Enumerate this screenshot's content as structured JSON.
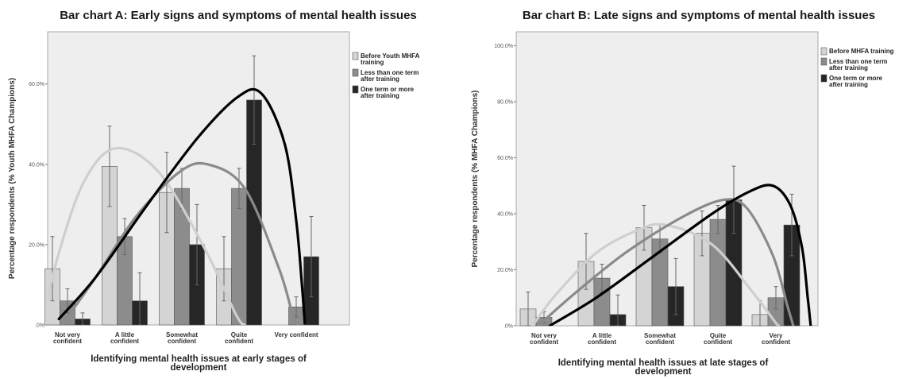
{
  "colors": {
    "series": [
      "#d4d4d4",
      "#8c8c8c",
      "#262626"
    ],
    "plot_bg": "#eeeeee",
    "curve_light": "#cfcfcf",
    "curve_mid": "#8a8a8a",
    "curve_dark": "#000000"
  },
  "chart_data": [
    {
      "type": "bar",
      "title": "Bar chart A: Early signs and symptoms of mental health issues",
      "xlabel_lines": [
        "Identifying mental health issues at early stages of",
        "development"
      ],
      "ylabel": "Percentage respondents (% Youth MHFA Champions)",
      "ylim": [
        0,
        73
      ],
      "yticks": [
        0,
        20,
        40,
        60
      ],
      "ytick_labels": [
        ".0%",
        "20.0%",
        "40.0%",
        "60.0%"
      ],
      "categories": [
        [
          "Not very",
          "confident"
        ],
        [
          "A little",
          "confident"
        ],
        [
          "Somewhat",
          "confident"
        ],
        [
          "Quite",
          "confident"
        ],
        [
          "Very confident"
        ]
      ],
      "series": [
        {
          "name_lines": [
            "Before Youth MHFA",
            "training"
          ],
          "values": [
            14,
            39.5,
            33,
            14,
            0
          ],
          "err": [
            8,
            10,
            10,
            8,
            0
          ]
        },
        {
          "name_lines": [
            "Less than one term",
            "after training"
          ],
          "values": [
            6,
            22,
            34,
            34,
            4.5
          ],
          "err": [
            3,
            4.5,
            5,
            5,
            2.5
          ]
        },
        {
          "name_lines": [
            "One term or more",
            "after training"
          ],
          "values": [
            1.5,
            6,
            20,
            56,
            17
          ],
          "err": [
            1.5,
            7,
            10,
            11,
            10
          ]
        }
      ],
      "curves": [
        {
          "series_index": 0,
          "color_key": "curve_light",
          "points": [
            [
              -0.45,
              0
            ],
            [
              -0.15,
              18
            ],
            [
              0.3,
              36
            ],
            [
              0.85,
              44
            ],
            [
              1.6,
              38
            ],
            [
              2.4,
              19
            ],
            [
              2.95,
              2.5
            ],
            [
              3.1,
              0
            ]
          ]
        },
        {
          "series_index": 1,
          "color_key": "curve_mid",
          "points": [
            [
              -0.1,
              0
            ],
            [
              0.5,
              12
            ],
            [
              1.2,
              27
            ],
            [
              1.95,
              38
            ],
            [
              2.45,
              40
            ],
            [
              3.1,
              34
            ],
            [
              3.7,
              14
            ],
            [
              3.95,
              2
            ],
            [
              4.05,
              0
            ]
          ]
        },
        {
          "series_index": 2,
          "color_key": "curve_dark",
          "points": [
            [
              -0.15,
              1.5
            ],
            [
              0.5,
              12
            ],
            [
              1.4,
              30
            ],
            [
              2.3,
              47
            ],
            [
              3.0,
              57
            ],
            [
              3.4,
              57.5
            ],
            [
              3.8,
              45
            ],
            [
              4.0,
              26
            ],
            [
              4.1,
              10
            ],
            [
              4.15,
              0.5
            ]
          ]
        }
      ],
      "legend_position": "right"
    },
    {
      "type": "bar",
      "title": "Bar chart B: Late signs and symptoms of mental health issues",
      "xlabel_lines": [
        "Identifying mental health issues at late stages of",
        "development"
      ],
      "ylabel": "Percentage respondents (% MHFA Champions)",
      "ylim": [
        0,
        105
      ],
      "yticks": [
        0,
        20,
        40,
        60,
        80,
        100
      ],
      "ytick_labels": [
        ".0%",
        "20.0%",
        "40.0%",
        "60.0%",
        "80.0%",
        "100.0%"
      ],
      "categories": [
        [
          "Not very",
          "confident"
        ],
        [
          "A little",
          "confident"
        ],
        [
          "Somewhat",
          "confident"
        ],
        [
          "Quite",
          "confident"
        ],
        [
          "Very",
          "confident"
        ]
      ],
      "series": [
        {
          "name_lines": [
            "Before MHFA training"
          ],
          "values": [
            6,
            23,
            35,
            33,
            4
          ],
          "err": [
            6,
            10,
            8,
            8,
            5
          ]
        },
        {
          "name_lines": [
            "Less than one term",
            "after training"
          ],
          "values": [
            3,
            17,
            31,
            38,
            10
          ],
          "err": [
            2,
            5,
            5,
            5,
            4
          ]
        },
        {
          "name_lines": [
            "One term or more",
            "after training"
          ],
          "values": [
            0,
            4,
            14,
            45,
            36
          ],
          "err": [
            0,
            7,
            10,
            12,
            11
          ]
        }
      ],
      "curves": [
        {
          "series_index": 0,
          "color_key": "curve_light",
          "points": [
            [
              -0.2,
              0
            ],
            [
              0.2,
              11
            ],
            [
              0.9,
              26
            ],
            [
              1.6,
              34
            ],
            [
              2.1,
              36
            ],
            [
              2.9,
              29
            ],
            [
              3.6,
              12
            ],
            [
              4.0,
              1
            ],
            [
              4.05,
              0
            ]
          ]
        },
        {
          "series_index": 1,
          "color_key": "curve_mid",
          "points": [
            [
              -0.1,
              0
            ],
            [
              0.5,
              11
            ],
            [
              1.4,
              26
            ],
            [
              2.4,
              39
            ],
            [
              3.1,
              45
            ],
            [
              3.5,
              42
            ],
            [
              3.95,
              25
            ],
            [
              4.2,
              7
            ],
            [
              4.3,
              0
            ]
          ]
        },
        {
          "series_index": 2,
          "color_key": "curve_dark",
          "points": [
            [
              0.1,
              0
            ],
            [
              0.9,
              10
            ],
            [
              1.9,
              25
            ],
            [
              2.9,
              40
            ],
            [
              3.55,
              48
            ],
            [
              3.95,
              50
            ],
            [
              4.25,
              43
            ],
            [
              4.45,
              28
            ],
            [
              4.55,
              10
            ],
            [
              4.6,
              0
            ]
          ]
        }
      ],
      "legend_position": "right"
    }
  ]
}
